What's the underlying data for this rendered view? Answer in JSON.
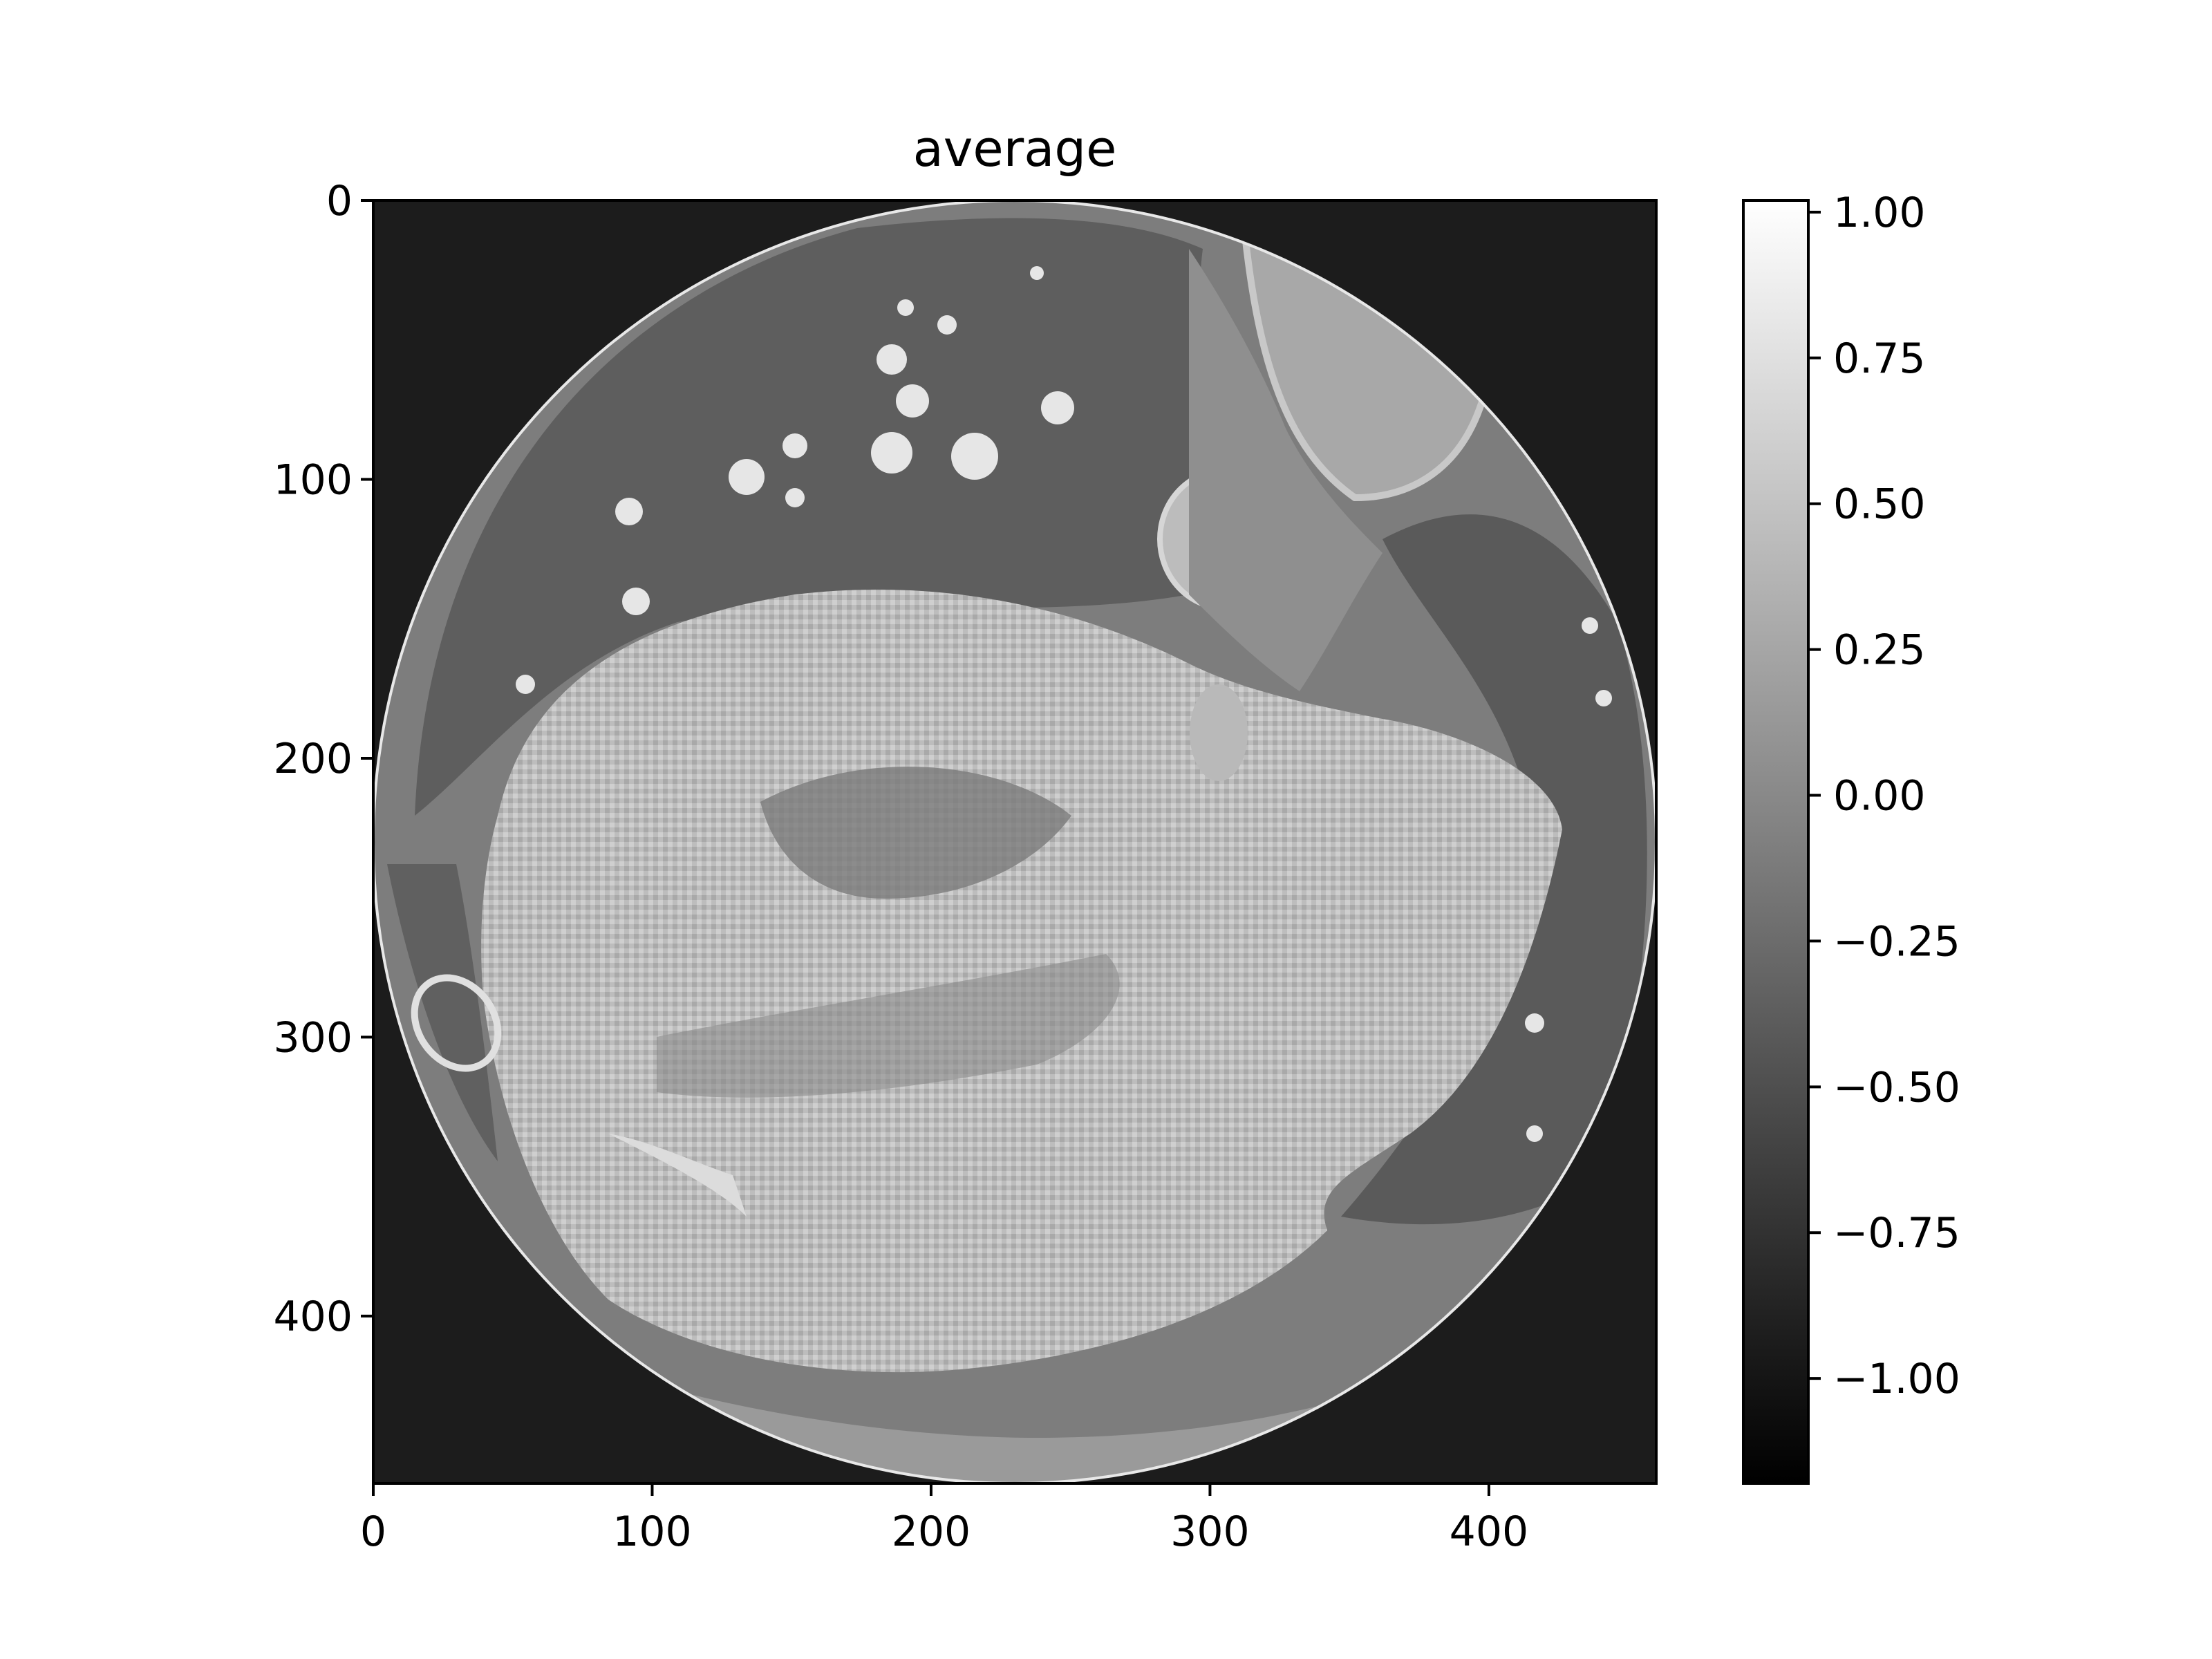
{
  "chart_data": {
    "type": "heatmap",
    "title": "average",
    "colormap": "gray",
    "image_extent": {
      "x": [
        0,
        460
      ],
      "y": [
        0,
        460
      ]
    },
    "x_axis": {
      "label": "",
      "ticks": [
        0,
        100,
        200,
        300,
        400
      ],
      "tick_labels": [
        "0",
        "100",
        "200",
        "300",
        "400"
      ]
    },
    "y_axis": {
      "label": "",
      "ticks": [
        0,
        100,
        200,
        300,
        400
      ],
      "tick_labels": [
        "0",
        "100",
        "200",
        "300",
        "400"
      ],
      "inverted": true
    },
    "colorbar": {
      "range": [
        -1.18,
        1.02
      ],
      "ticks": [
        1.0,
        0.75,
        0.5,
        0.25,
        0.0,
        -0.25,
        -0.5,
        -0.75,
        -1.0
      ],
      "tick_labels": [
        "1.00",
        "0.75",
        "0.50",
        "0.25",
        "0.00",
        "−0.25",
        "−0.50",
        "−0.75",
        "−1.00"
      ]
    },
    "grid": false
  },
  "colors": {
    "axis": "#000000",
    "outside_circle": "#6b6b6b",
    "circle_rim_dark": "#2a2a2a",
    "tissue_light": "#c8c8c8",
    "lung_dark": "#5a5a5a"
  }
}
